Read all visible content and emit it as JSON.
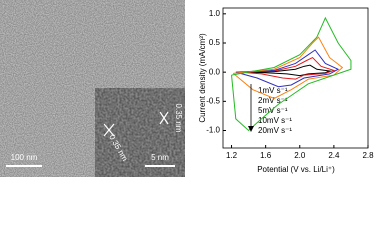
{
  "image_panel": {
    "scale_bar_main": "100 nm",
    "scale_bar_inset": "5 nm",
    "lattice_label_1": "0.35 nm",
    "lattice_label_2": "0.35 nm"
  },
  "chart_data": {
    "type": "line",
    "x_label": "Potential (V vs. Li/Li⁺)",
    "y_label": "Current density (mA/cm²)",
    "xlim": [
      1.1,
      2.8
    ],
    "ylim": [
      -1.3,
      1.1
    ],
    "xticks": [
      1.2,
      1.6,
      {
        "value": 2.0,
        "label": "2.0"
      },
      2.4,
      2.8
    ],
    "yticks": [
      {
        "value": -1.0,
        "label": "-1.0"
      },
      -0.5,
      {
        "value": 0.0,
        "label": "0.0"
      },
      0.5,
      {
        "value": 1.0,
        "label": "1.0"
      }
    ],
    "series": [
      {
        "name": "1mV s⁻¹",
        "color": "#000000",
        "x": [
          1.3,
          1.7,
          1.95,
          2.05,
          2.12,
          2.2,
          2.35,
          2.3,
          2.1,
          2.0,
          1.85,
          1.6,
          1.3
        ],
        "values": [
          0.0,
          0.01,
          0.05,
          0.1,
          0.12,
          0.05,
          0.02,
          -0.01,
          -0.03,
          -0.06,
          -0.03,
          -0.01,
          0.0
        ]
      },
      {
        "name": "2mV s⁻¹",
        "color": "#e41a1c",
        "x": [
          1.3,
          1.7,
          1.95,
          2.08,
          2.15,
          2.25,
          2.4,
          2.3,
          2.05,
          1.95,
          1.8,
          1.55,
          1.3
        ],
        "values": [
          0.0,
          0.02,
          0.1,
          0.2,
          0.25,
          0.1,
          0.03,
          -0.02,
          -0.05,
          -0.12,
          -0.1,
          -0.03,
          0.0
        ]
      },
      {
        "name": "5mV s⁻¹",
        "color": "#3030c0",
        "x": [
          1.25,
          1.7,
          1.95,
          2.1,
          2.18,
          2.3,
          2.45,
          2.35,
          2.05,
          1.9,
          1.75,
          1.5,
          1.25
        ],
        "values": [
          0.0,
          0.03,
          0.15,
          0.3,
          0.38,
          0.15,
          0.05,
          -0.03,
          -0.1,
          -0.22,
          -0.25,
          -0.1,
          0.0
        ]
      },
      {
        "name": "10mV s⁻¹",
        "color": "#ff7f0e",
        "x": [
          1.22,
          1.7,
          2.0,
          2.15,
          2.22,
          2.35,
          2.5,
          2.4,
          2.1,
          1.9,
          1.7,
          1.45,
          1.22
        ],
        "values": [
          -0.02,
          0.05,
          0.25,
          0.5,
          0.6,
          0.25,
          0.08,
          -0.05,
          -0.12,
          -0.3,
          -0.45,
          -0.3,
          -0.02
        ]
      },
      {
        "name": "20mV s⁻¹",
        "color": "#22bb22",
        "x": [
          1.2,
          1.7,
          2.0,
          2.2,
          2.3,
          2.45,
          2.6,
          2.6,
          2.3,
          2.1,
          1.9,
          1.75,
          1.55,
          1.4,
          1.25,
          1.2
        ],
        "values": [
          -0.05,
          0.08,
          0.3,
          0.6,
          0.93,
          0.5,
          0.2,
          0.05,
          -0.1,
          -0.2,
          -0.4,
          -0.55,
          -0.8,
          -1.0,
          -0.8,
          -0.05
        ]
      }
    ]
  }
}
